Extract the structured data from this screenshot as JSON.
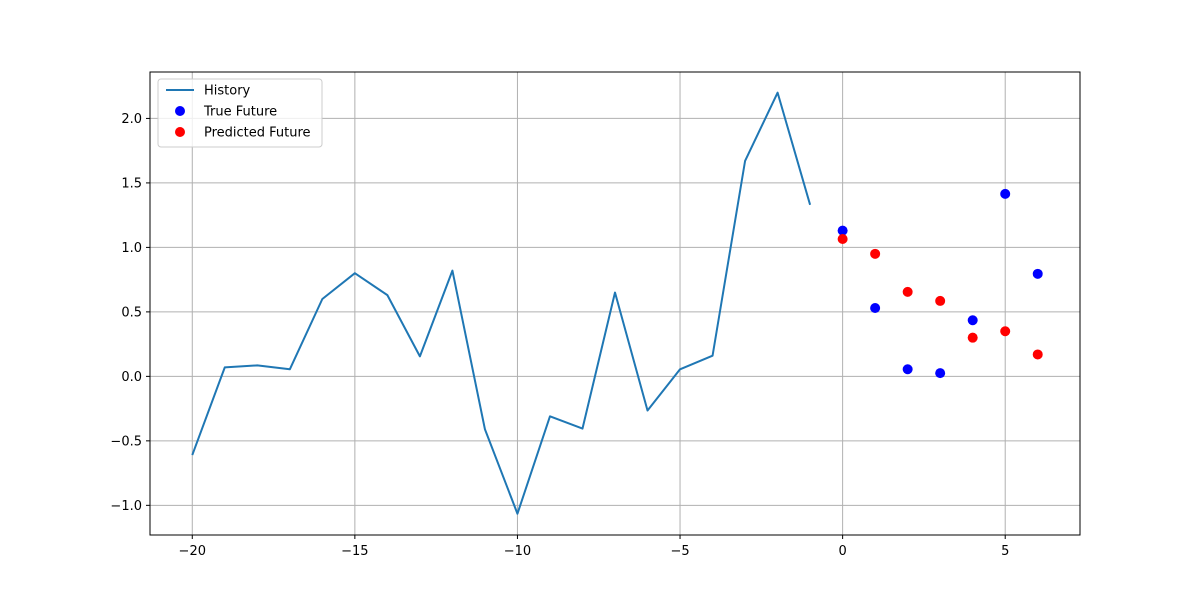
{
  "chart_data": {
    "type": "line",
    "title": "",
    "xlabel": "",
    "ylabel": "",
    "xlim": [
      -21.3,
      7.3
    ],
    "ylim": [
      -1.23,
      2.36
    ],
    "grid": true,
    "legend_position": "upper-left",
    "x_ticks": [
      -20,
      -15,
      -10,
      -5,
      0,
      5
    ],
    "x_tick_labels": [
      "−20",
      "−15",
      "−10",
      "−5",
      "0",
      "5"
    ],
    "y_ticks": [
      -1.0,
      -0.5,
      0.0,
      0.5,
      1.0,
      1.5,
      2.0
    ],
    "y_tick_labels": [
      "−1.0",
      "−0.5",
      "0.0",
      "0.5",
      "1.0",
      "1.5",
      "2.0"
    ],
    "series": [
      {
        "name": "History",
        "kind": "line",
        "color": "#1f77b4",
        "x": [
          -20,
          -19,
          -18,
          -17,
          -16,
          -15,
          -14,
          -13,
          -12,
          -11,
          -10,
          -9,
          -8,
          -7,
          -6,
          -5,
          -4,
          -3,
          -2,
          -1
        ],
        "y": [
          -0.61,
          0.07,
          0.085,
          0.055,
          0.6,
          0.8,
          0.63,
          0.155,
          0.82,
          -0.41,
          -1.065,
          -0.31,
          -0.405,
          0.65,
          -0.265,
          0.055,
          0.16,
          1.67,
          2.2,
          1.33
        ]
      },
      {
        "name": "True Future",
        "kind": "scatter",
        "color": "#0000ff",
        "x": [
          0,
          1,
          2,
          3,
          4,
          5,
          6
        ],
        "y": [
          1.13,
          0.53,
          0.055,
          0.025,
          0.435,
          1.415,
          0.795
        ]
      },
      {
        "name": "Predicted Future",
        "kind": "scatter",
        "color": "#ff0000",
        "x": [
          0,
          1,
          2,
          3,
          4,
          5,
          6
        ],
        "y": [
          1.065,
          0.95,
          0.655,
          0.585,
          0.3,
          0.35,
          0.17
        ]
      }
    ]
  }
}
